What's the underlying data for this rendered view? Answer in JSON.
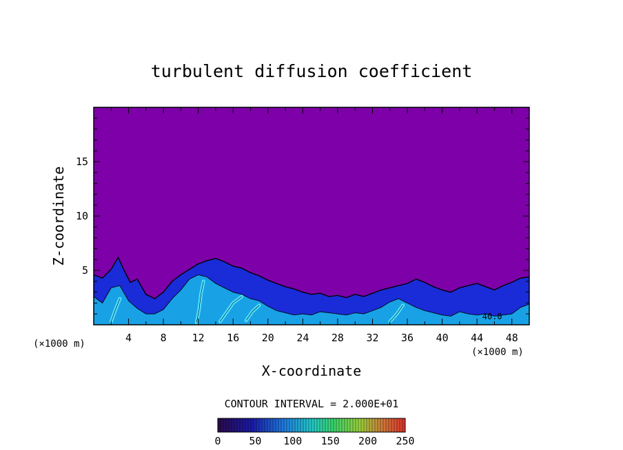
{
  "chart_data": {
    "type": "heatmap",
    "title": "turbulent diffusion coefficient",
    "xlabel": "X-coordinate",
    "ylabel": "Z-coordinate",
    "x_unit": "(×1000 m)",
    "x_unit_right": "(×1000 m)",
    "xlim": [
      0,
      50
    ],
    "ylim": [
      0,
      20
    ],
    "x_ticks": [
      4,
      8,
      12,
      16,
      20,
      24,
      28,
      32,
      36,
      40,
      44,
      48
    ],
    "y_ticks": [
      5,
      10,
      15
    ],
    "contour_interval_text": "CONTOUR INTERVAL = 2.000E+01",
    "contour_annotation": "40.0",
    "contour_annotation_x": 44.6,
    "contour_annotation_z": 0.5,
    "colorbar": {
      "range": [
        0,
        250
      ],
      "ticks": [
        0,
        50,
        100,
        150,
        200,
        250
      ]
    },
    "colors": {
      "background_field": "#7d00a8",
      "low": "#1a2bd8",
      "mid": "#19a8e6",
      "high": "#4fe0ff"
    },
    "turbulent_layer_top": [
      [
        0,
        4.6
      ],
      [
        1,
        4.3
      ],
      [
        2,
        5.1
      ],
      [
        2.8,
        6.2
      ],
      [
        3.5,
        5.0
      ],
      [
        4.2,
        3.9
      ],
      [
        5,
        4.2
      ],
      [
        6,
        2.8
      ],
      [
        7,
        2.4
      ],
      [
        8,
        3.0
      ],
      [
        9,
        4.0
      ],
      [
        10,
        4.6
      ],
      [
        11,
        5.1
      ],
      [
        12,
        5.6
      ],
      [
        13,
        5.9
      ],
      [
        14,
        6.1
      ],
      [
        15,
        5.8
      ],
      [
        16,
        5.4
      ],
      [
        17,
        5.2
      ],
      [
        18,
        4.8
      ],
      [
        19,
        4.5
      ],
      [
        20,
        4.1
      ],
      [
        21,
        3.8
      ],
      [
        22,
        3.5
      ],
      [
        23,
        3.3
      ],
      [
        24,
        3.0
      ],
      [
        25,
        2.8
      ],
      [
        26,
        2.9
      ],
      [
        27,
        2.6
      ],
      [
        28,
        2.7
      ],
      [
        29,
        2.5
      ],
      [
        30,
        2.8
      ],
      [
        31,
        2.6
      ],
      [
        32,
        2.9
      ],
      [
        33,
        3.2
      ],
      [
        34,
        3.4
      ],
      [
        35,
        3.6
      ],
      [
        36,
        3.8
      ],
      [
        37,
        4.2
      ],
      [
        38,
        3.9
      ],
      [
        39,
        3.5
      ],
      [
        40,
        3.2
      ],
      [
        41,
        3.0
      ],
      [
        42,
        3.4
      ],
      [
        43,
        3.6
      ],
      [
        44,
        3.8
      ],
      [
        45,
        3.5
      ],
      [
        46,
        3.2
      ],
      [
        47,
        3.6
      ],
      [
        48,
        3.9
      ],
      [
        49,
        4.3
      ],
      [
        50,
        4.4
      ]
    ],
    "active_core_top": [
      [
        0,
        2.6
      ],
      [
        1,
        2.0
      ],
      [
        2,
        3.4
      ],
      [
        3,
        3.6
      ],
      [
        4,
        2.2
      ],
      [
        5,
        1.5
      ],
      [
        6,
        1.0
      ],
      [
        7,
        1.0
      ],
      [
        8,
        1.4
      ],
      [
        9,
        2.4
      ],
      [
        10,
        3.2
      ],
      [
        11,
        4.2
      ],
      [
        12,
        4.6
      ],
      [
        13,
        4.4
      ],
      [
        14,
        3.8
      ],
      [
        15,
        3.4
      ],
      [
        16,
        3.0
      ],
      [
        17,
        2.8
      ],
      [
        18,
        2.4
      ],
      [
        19,
        2.2
      ],
      [
        20,
        1.7
      ],
      [
        21,
        1.3
      ],
      [
        22,
        1.1
      ],
      [
        23,
        0.9
      ],
      [
        24,
        1.0
      ],
      [
        25,
        0.9
      ],
      [
        26,
        1.2
      ],
      [
        27,
        1.1
      ],
      [
        28,
        1.0
      ],
      [
        29,
        0.9
      ],
      [
        30,
        1.1
      ],
      [
        31,
        1.0
      ],
      [
        32,
        1.3
      ],
      [
        33,
        1.6
      ],
      [
        34,
        2.1
      ],
      [
        35,
        2.4
      ],
      [
        36,
        2.0
      ],
      [
        37,
        1.6
      ],
      [
        38,
        1.3
      ],
      [
        39,
        1.1
      ],
      [
        40,
        0.9
      ],
      [
        41,
        0.8
      ],
      [
        42,
        1.2
      ],
      [
        43,
        1.0
      ],
      [
        44,
        0.9
      ],
      [
        45,
        1.0
      ],
      [
        46,
        0.8
      ],
      [
        47,
        0.9
      ],
      [
        48,
        1.0
      ],
      [
        49,
        1.6
      ],
      [
        50,
        1.9
      ]
    ],
    "intense_streaks": [
      [
        [
          11.8,
          0.2
        ],
        [
          12.1,
          1.4
        ],
        [
          12.3,
          2.8
        ],
        [
          12.6,
          4.0
        ]
      ],
      [
        [
          14.5,
          0.3
        ],
        [
          15.3,
          1.2
        ],
        [
          16.0,
          2.0
        ],
        [
          17.0,
          2.6
        ]
      ],
      [
        [
          17.5,
          0.4
        ],
        [
          18.2,
          1.2
        ],
        [
          19.0,
          1.8
        ]
      ],
      [
        [
          34.0,
          0.3
        ],
        [
          34.8,
          1.0
        ],
        [
          35.5,
          1.8
        ]
      ],
      [
        [
          2.0,
          0.3
        ],
        [
          2.5,
          1.4
        ],
        [
          3.0,
          2.4
        ]
      ]
    ]
  }
}
